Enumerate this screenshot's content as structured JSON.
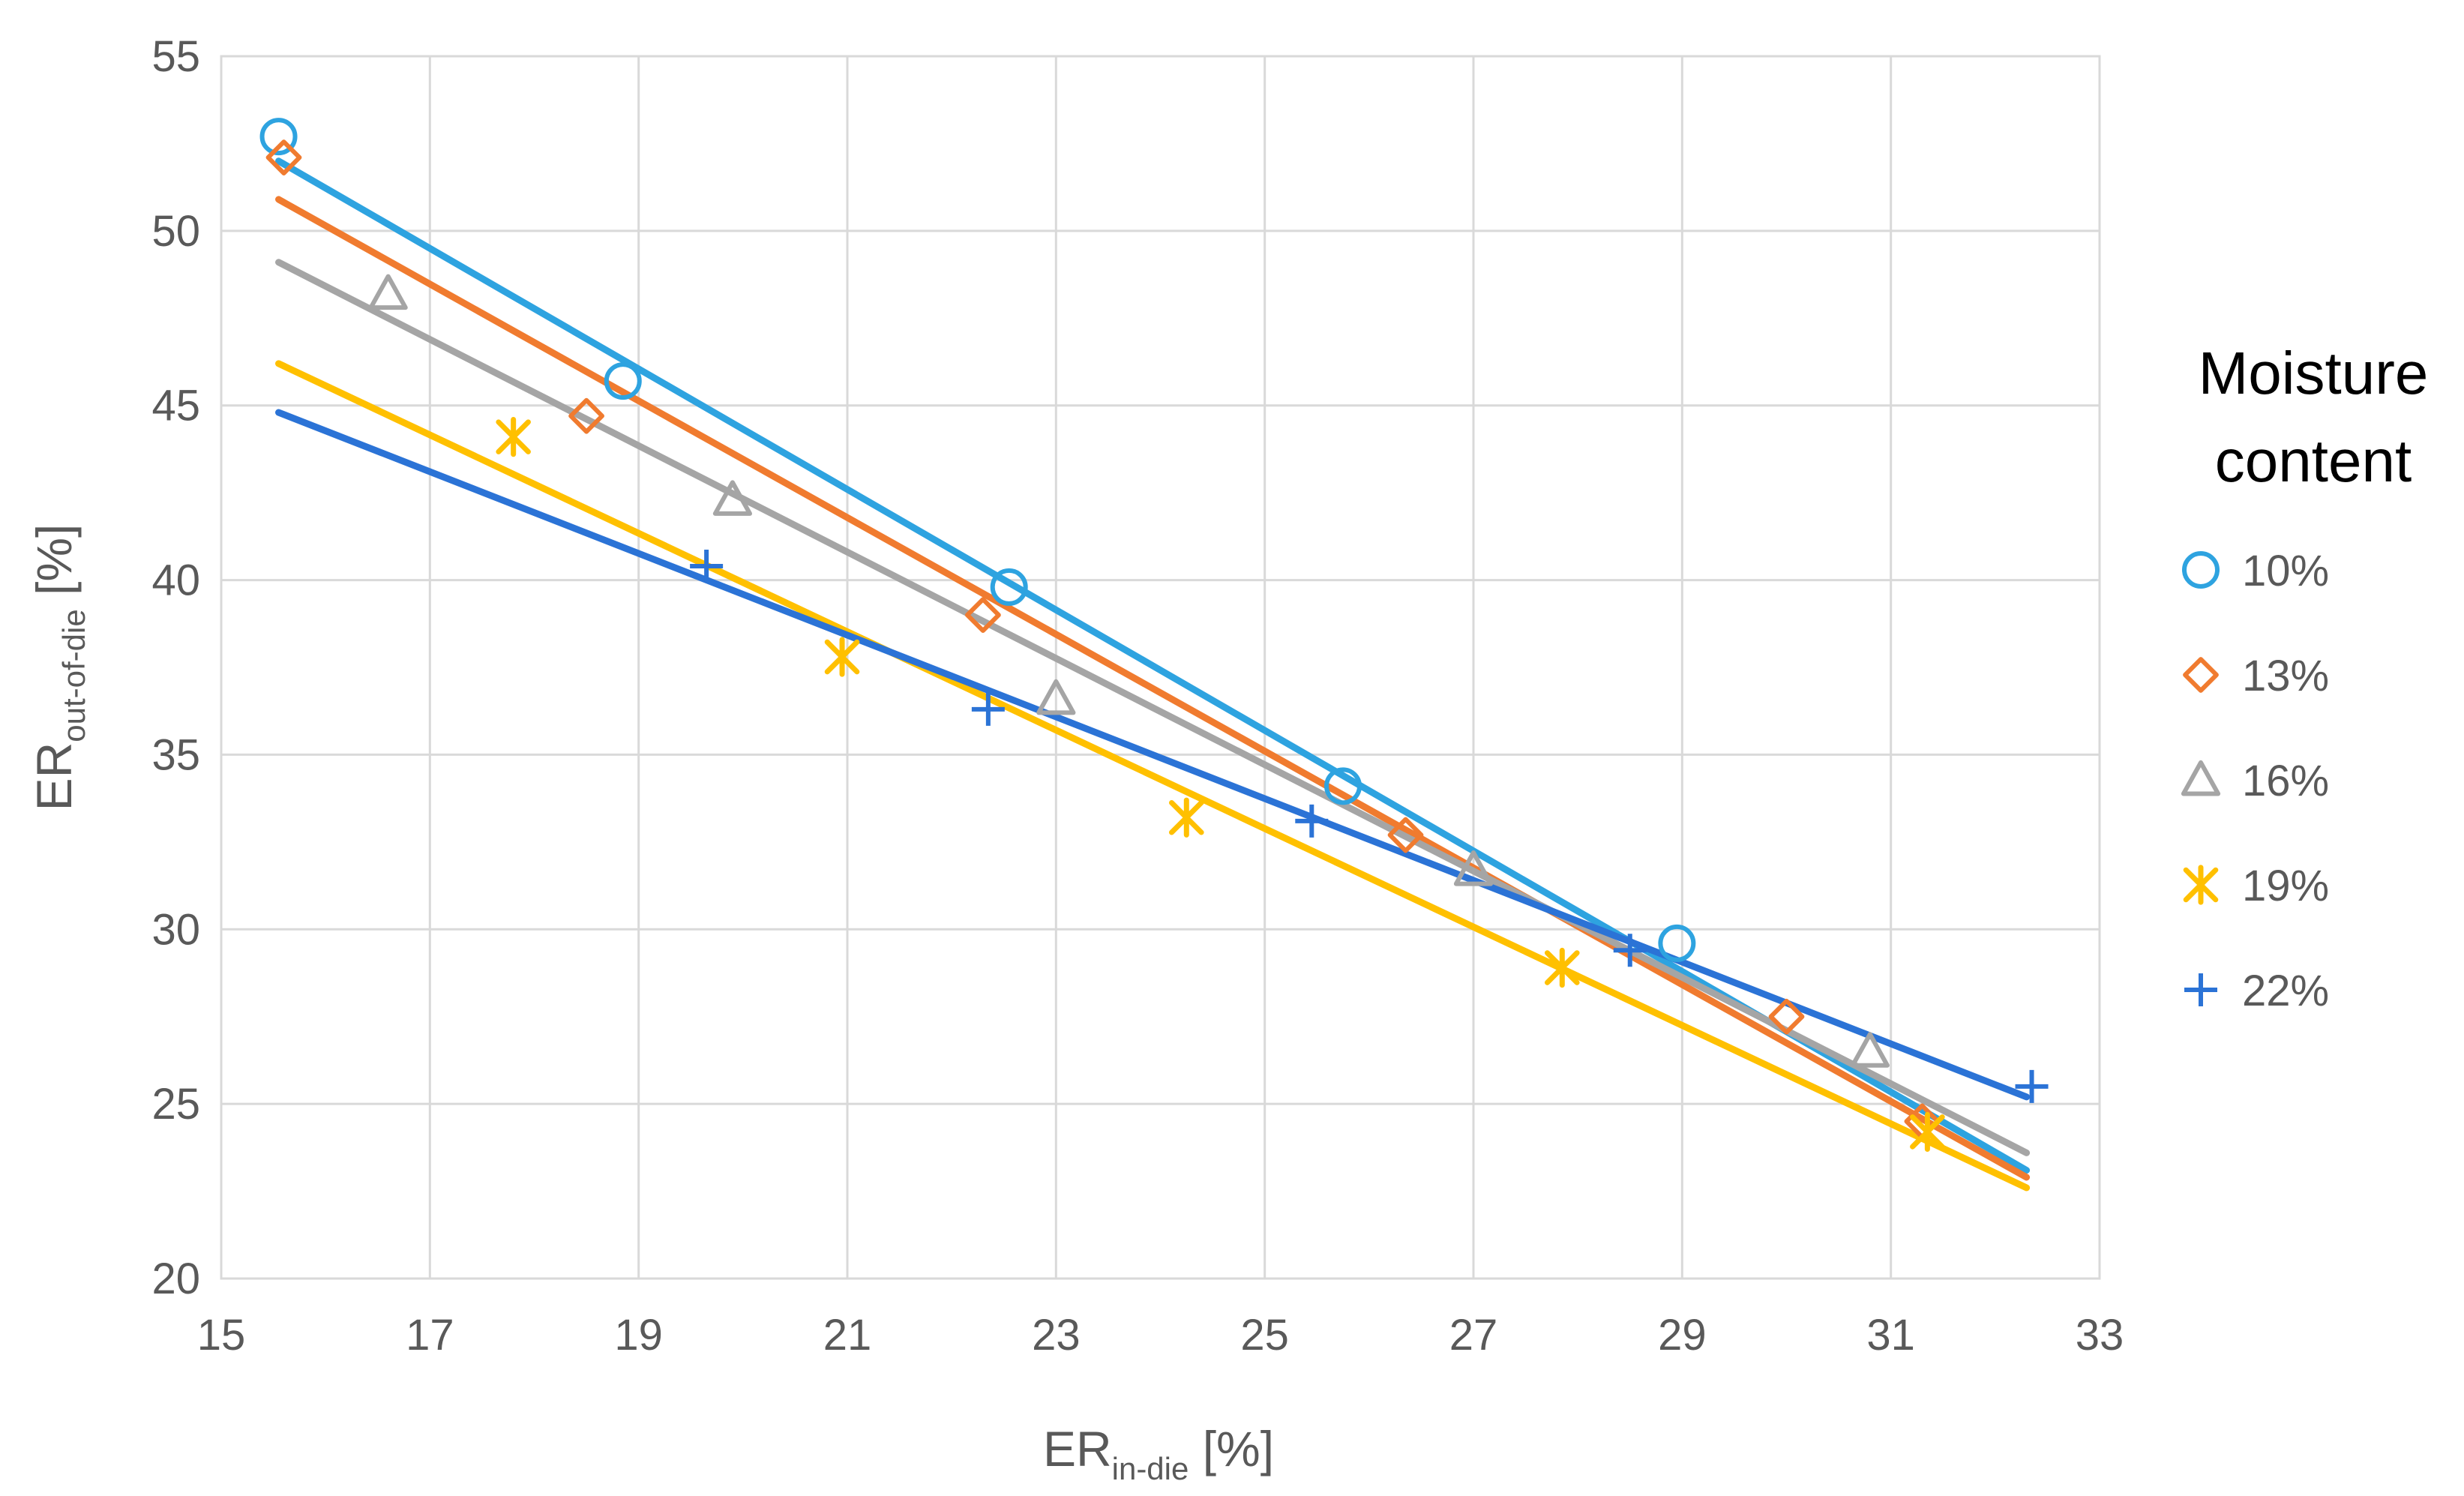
{
  "chart_data": {
    "type": "scatter",
    "title": "",
    "xlabel": {
      "main": "ER",
      "sub": "in-die",
      "unit": " [%]"
    },
    "ylabel": {
      "main": "ER",
      "sub": "out-of-die",
      "unit": " [%]"
    },
    "xlim": [
      15,
      33
    ],
    "ylim": [
      20,
      55
    ],
    "xticks": [
      "15",
      "17",
      "19",
      "21",
      "23",
      "25",
      "27",
      "29",
      "31",
      "33"
    ],
    "yticks": [
      "20",
      "25",
      "30",
      "35",
      "40",
      "45",
      "50",
      "55"
    ],
    "grid": true,
    "legend": {
      "title_line1": "Moisture",
      "title_line2": "content",
      "position": "right"
    },
    "series": [
      {
        "name": "10%",
        "color": "#2ea3e0",
        "marker": "circle",
        "points": [
          [
            15.55,
            52.7
          ],
          [
            18.85,
            45.7
          ],
          [
            22.55,
            39.8
          ],
          [
            25.75,
            34.1
          ],
          [
            28.95,
            29.6
          ]
        ],
        "fit": [
          [
            15.55,
            52.0
          ],
          [
            32.3,
            23.1
          ]
        ]
      },
      {
        "name": "13%",
        "color": "#f07b2f",
        "marker": "diamond",
        "points": [
          [
            15.6,
            52.1
          ],
          [
            18.5,
            44.7
          ],
          [
            22.3,
            39.0
          ],
          [
            26.35,
            32.7
          ],
          [
            30.0,
            27.5
          ],
          [
            31.3,
            24.5
          ]
        ],
        "fit": [
          [
            15.55,
            50.9
          ],
          [
            32.3,
            22.9
          ]
        ]
      },
      {
        "name": "16%",
        "color": "#a5a5a5",
        "marker": "triangle",
        "points": [
          [
            16.6,
            48.2
          ],
          [
            19.9,
            42.3
          ],
          [
            23.0,
            36.6
          ],
          [
            27.0,
            31.7
          ],
          [
            30.8,
            26.5
          ]
        ],
        "fit": [
          [
            15.55,
            49.1
          ],
          [
            32.3,
            23.6
          ]
        ]
      },
      {
        "name": "19%",
        "color": "#ffc000",
        "marker": "star",
        "points": [
          [
            17.8,
            44.1
          ],
          [
            20.95,
            37.8
          ],
          [
            24.25,
            33.2
          ],
          [
            27.85,
            28.9
          ],
          [
            31.35,
            24.2
          ]
        ],
        "fit": [
          [
            15.55,
            46.2
          ],
          [
            32.3,
            22.6
          ]
        ]
      },
      {
        "name": "22%",
        "color": "#2b73d6",
        "marker": "plus",
        "points": [
          [
            19.65,
            40.4
          ],
          [
            22.35,
            36.3
          ],
          [
            25.45,
            33.1
          ],
          [
            28.5,
            29.4
          ],
          [
            32.35,
            25.5
          ]
        ],
        "fit": [
          [
            15.55,
            44.8
          ],
          [
            32.3,
            25.2
          ]
        ]
      }
    ]
  }
}
